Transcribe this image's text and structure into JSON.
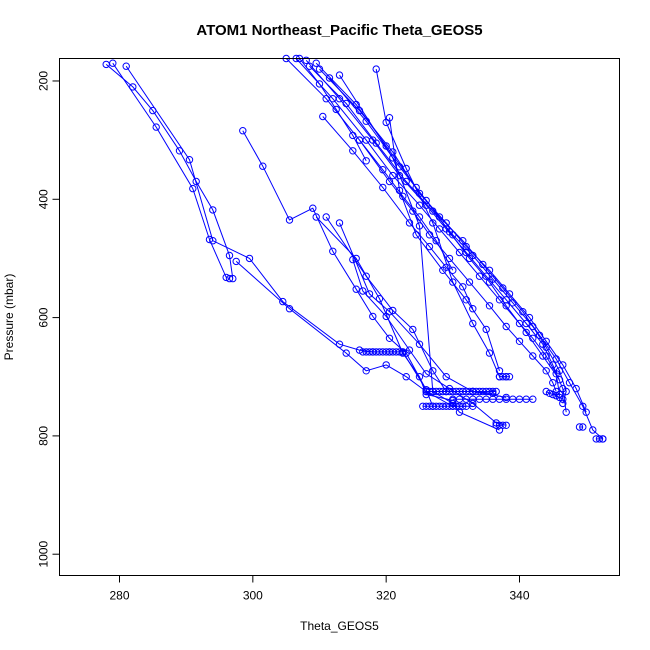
{
  "chart_data": {
    "type": "line",
    "title": "ATOM1 Northeast_Pacific Theta_GEOS5",
    "xlabel": "Theta_GEOS5",
    "ylabel": "Pressure (mbar)",
    "xlim": [
      271,
      355
    ],
    "ylim": [
      1036,
      162
    ],
    "y_reversed": true,
    "grid": false,
    "marker": "open-circle",
    "line_color": "#0000ff",
    "x_ticks": [
      280,
      300,
      320,
      340
    ],
    "x_tick_labels": [
      "280",
      "300",
      "320",
      "340"
    ],
    "y_ticks": [
      200,
      400,
      600,
      800,
      1000
    ],
    "y_tick_labels": [
      "200",
      "400",
      "600",
      "800",
      "1000"
    ],
    "series": [
      {
        "x": [
          278,
          282,
          285,
          289,
          291.5,
          294,
          296.5,
          297
        ],
        "y": [
          172,
          210,
          250,
          318,
          370,
          418,
          495,
          534
        ]
      },
      {
        "x": [
          279,
          285.5,
          291,
          293.5,
          296,
          296.5
        ],
        "y": [
          170,
          278,
          382,
          468,
          532,
          534
        ]
      },
      {
        "x": [
          281,
          290.5,
          294,
          299.5,
          304.5,
          313,
          316,
          318,
          320.5,
          322.5,
          326,
          327
        ],
        "y": [
          175,
          333,
          470,
          500,
          573,
          645,
          655,
          658,
          658,
          658,
          722,
          750
        ]
      },
      {
        "x": [
          298.5,
          301.5,
          305.5,
          309,
          312,
          315.5,
          318,
          320.5,
          323,
          326
        ],
        "y": [
          284,
          344,
          435,
          415,
          488,
          552,
          598,
          635,
          660,
          722
        ]
      },
      {
        "x": [
          297.5,
          305.5,
          314,
          317,
          320,
          323,
          326,
          330,
          333
        ],
        "y": [
          505,
          585,
          660,
          690,
          680,
          700,
          725,
          750,
          750
        ]
      },
      {
        "x": [
          309.5,
          315.5,
          319,
          322.5,
          325,
          326,
          330
        ],
        "y": [
          430,
          500,
          568,
          660,
          700,
          730,
          740
        ]
      },
      {
        "x": [
          311,
          317,
          321,
          324,
          327,
          329,
          333,
          336
        ],
        "y": [
          430,
          530,
          588,
          620,
          690,
          725,
          725,
          728
        ]
      },
      {
        "x": [
          313,
          317.5,
          320.5,
          325,
          329,
          333,
          338
        ],
        "y": [
          440,
          560,
          590,
          645,
          700,
          725,
          735
        ]
      },
      {
        "x": [
          315,
          316.5,
          320,
          323.5,
          326,
          329.5,
          333,
          336.5,
          338
        ],
        "y": [
          502,
          555,
          598,
          655,
          695,
          720,
          745,
          778,
          782
        ]
      },
      {
        "x": [
          313,
          321,
          325,
          327,
          330,
          331,
          337
        ],
        "y": [
          190,
          330,
          445,
          725,
          745,
          760,
          790
        ]
      },
      {
        "x": [
          318.5,
          320,
          323,
          327,
          330,
          333,
          335.5,
          337,
          338
        ],
        "y": [
          180,
          270,
          348,
          440,
          540,
          610,
          660,
          700,
          700
        ]
      },
      {
        "x": [
          320.5,
          322,
          324.5,
          328.5,
          332,
          335,
          337
        ],
        "y": [
          262,
          385,
          460,
          520,
          570,
          620,
          690
        ]
      },
      {
        "x": [
          305,
          311,
          316,
          320.5,
          324,
          326.5,
          329.5,
          332.5,
          335.5,
          338,
          340,
          342,
          344,
          345,
          345.5
        ],
        "y": [
          162,
          230,
          300,
          370,
          420,
          460,
          500,
          540,
          580,
          615,
          640,
          665,
          690,
          710,
          725
        ]
      },
      {
        "x": [
          306.5,
          312,
          317,
          321,
          325,
          328,
          331,
          334,
          337,
          340,
          342,
          344,
          345.5,
          346
        ],
        "y": [
          162,
          230,
          300,
          360,
          410,
          450,
          490,
          530,
          570,
          610,
          635,
          665,
          695,
          730
        ]
      },
      {
        "x": [
          308,
          313,
          318,
          322,
          326,
          329,
          332,
          335,
          338,
          341,
          343.5,
          345,
          346.5,
          347
        ],
        "y": [
          165,
          230,
          300,
          360,
          410,
          450,
          490,
          530,
          570,
          610,
          645,
          680,
          720,
          760
        ]
      },
      {
        "x": [
          308.5,
          314,
          318.5,
          323,
          327,
          330,
          333,
          336,
          339,
          342,
          344,
          346,
          347,
          346.5
        ],
        "y": [
          175,
          238,
          305,
          370,
          420,
          460,
          495,
          535,
          575,
          615,
          650,
          690,
          725,
          745
        ]
      },
      {
        "x": [
          309.5,
          315.5,
          320,
          324.5,
          328,
          331.5,
          334.5,
          337.5,
          340.5,
          343,
          345.5,
          347.5,
          349.5,
          351,
          352.5
        ],
        "y": [
          170,
          240,
          310,
          380,
          430,
          470,
          510,
          550,
          590,
          630,
          670,
          710,
          750,
          790,
          805
        ]
      },
      {
        "x": [
          310,
          316,
          321,
          325,
          329,
          332,
          335.5,
          338.5,
          341.5,
          344,
          346.5,
          348.5,
          350
        ],
        "y": [
          180,
          250,
          320,
          390,
          440,
          480,
          520,
          560,
          600,
          640,
          680,
          720,
          760
        ]
      },
      {
        "x": [
          311.5,
          317,
          322,
          326,
          329.5,
          332.5,
          335.5,
          338,
          341,
          343.5,
          346
        ],
        "y": [
          195,
          268,
          345,
          402,
          455,
          500,
          540,
          580,
          625,
          665,
          705
        ]
      },
      {
        "x": [
          310.5,
          315,
          319.5,
          323.5,
          326.5,
          329,
          331.5,
          333
        ],
        "y": [
          260,
          318,
          380,
          440,
          480,
          515,
          548,
          585
        ]
      },
      {
        "x": [
          316,
          319.5,
          322.5,
          325,
          327.5,
          330
        ],
        "y": [
          300,
          350,
          395,
          430,
          470,
          520
        ]
      },
      {
        "x": [
          307,
          310,
          312.5,
          315,
          317
        ],
        "y": [
          162,
          205,
          248,
          292,
          335
        ]
      },
      {
        "x": [
          326,
          326.5,
          327,
          327.5,
          328,
          328.5,
          329,
          329.5,
          330,
          330.5,
          331,
          331.5,
          332,
          332.5,
          333,
          333.5,
          334,
          334.5,
          335,
          335.5,
          336,
          336.5
        ],
        "y": [
          725,
          725,
          725,
          725,
          725,
          725,
          725,
          725,
          725,
          725,
          725,
          725,
          725,
          725,
          725,
          725,
          725,
          725,
          725,
          725,
          725,
          725
        ]
      },
      {
        "x": [
          325.5,
          326,
          326.5,
          327,
          327.5,
          328,
          328.5,
          329,
          329.5,
          330,
          330.5,
          331,
          331.5,
          332
        ],
        "y": [
          750,
          750,
          750,
          750,
          750,
          750,
          750,
          750,
          750,
          750,
          750,
          750,
          750,
          750
        ]
      },
      {
        "x": [
          330,
          331,
          332,
          333,
          334,
          335,
          336,
          337,
          338,
          339,
          340,
          341,
          342
        ],
        "y": [
          738,
          738,
          738,
          738,
          738,
          738,
          738,
          738,
          738,
          738,
          738,
          738,
          738
        ]
      },
      {
        "x": [
          316.5,
          317,
          317.5,
          318,
          318.5,
          319,
          319.5,
          320,
          320.5,
          321,
          321.5,
          322,
          322.5
        ],
        "y": [
          658,
          658,
          658,
          658,
          658,
          658,
          658,
          658,
          658,
          658,
          658,
          658,
          658
        ]
      },
      {
        "x": [
          337,
          337.5,
          338,
          338.5
        ],
        "y": [
          700,
          700,
          700,
          700
        ]
      },
      {
        "x": [
          344,
          344.5,
          345,
          345.5,
          346,
          346.5
        ],
        "y": [
          725,
          728,
          730,
          732,
          735,
          738
        ]
      },
      {
        "x": [
          351.5,
          352,
          352.5
        ],
        "y": [
          805,
          805,
          805
        ]
      },
      {
        "x": [
          349,
          349.5
        ],
        "y": [
          785,
          785
        ]
      },
      {
        "x": [
          336.5,
          337,
          337.5
        ],
        "y": [
          782,
          782,
          782
        ]
      }
    ]
  }
}
